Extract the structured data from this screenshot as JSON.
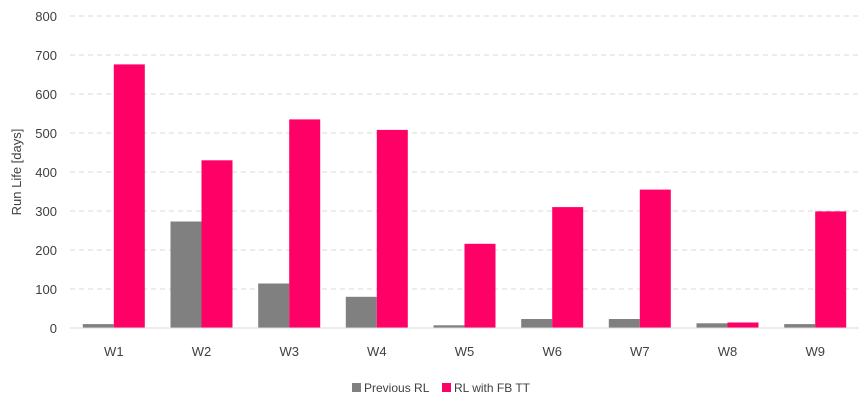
{
  "chart_data": {
    "type": "bar",
    "categories": [
      "W1",
      "W2",
      "W3",
      "W4",
      "W5",
      "W6",
      "W7",
      "W8",
      "W9"
    ],
    "series": [
      {
        "name": "Previous RL",
        "values": [
          10,
          273,
          114,
          80,
          7,
          23,
          23,
          12,
          10
        ],
        "color": "#808080"
      },
      {
        "name": "RL with FB TT",
        "values": [
          676,
          430,
          535,
          508,
          216,
          310,
          355,
          14,
          299
        ],
        "color": "#ff0066"
      }
    ],
    "title": "",
    "xlabel": "",
    "ylabel": "Run Life [days]",
    "ylim": [
      0,
      800
    ],
    "yticks": [
      0,
      100,
      200,
      300,
      400,
      500,
      600,
      700,
      800
    ],
    "grid": true,
    "legend": "bottom-center"
  }
}
